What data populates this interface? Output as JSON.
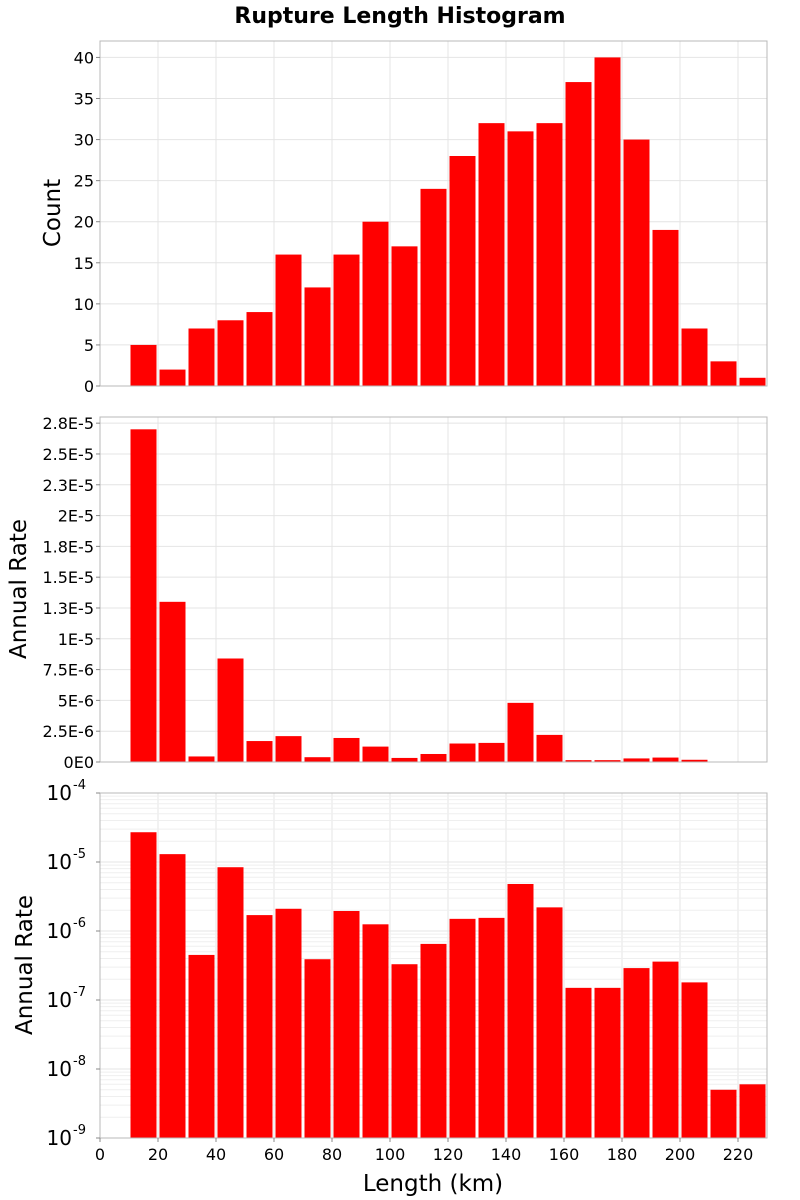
{
  "title": "Rupture Length Histogram",
  "colors": {
    "bar": "#ff0000",
    "bar_edge": "#ffffff"
  },
  "chart_data": [
    {
      "type": "bar",
      "bin_width": 10,
      "x": [
        15,
        25,
        35,
        45,
        55,
        65,
        75,
        85,
        95,
        105,
        115,
        125,
        135,
        145,
        155,
        165,
        175,
        185,
        195,
        205,
        215,
        225
      ],
      "values": [
        5,
        2,
        7,
        8,
        9,
        16,
        12,
        16,
        20,
        17,
        24,
        28,
        32,
        31,
        32,
        37,
        40,
        30,
        19,
        7,
        3,
        1
      ],
      "ylabel": "Count",
      "xlim": [
        0,
        230
      ],
      "ylim": [
        0,
        42
      ],
      "yticks": [
        0,
        5,
        10,
        15,
        20,
        25,
        30,
        35,
        40
      ],
      "ytick_labels": [
        "0",
        "5",
        "10",
        "15",
        "20",
        "25",
        "30",
        "35",
        "40"
      ],
      "grid": true
    },
    {
      "type": "bar",
      "bin_width": 10,
      "x": [
        15,
        25,
        35,
        45,
        55,
        65,
        75,
        85,
        95,
        105,
        115,
        125,
        135,
        145,
        155,
        165,
        175,
        185,
        195,
        205,
        215,
        225
      ],
      "values": [
        2.7e-05,
        1.3e-05,
        4.5e-07,
        8.4e-06,
        1.7e-06,
        2.1e-06,
        3.9e-07,
        1.95e-06,
        1.25e-06,
        3.3e-07,
        6.5e-07,
        1.5e-06,
        1.55e-06,
        4.8e-06,
        2.2e-06,
        1.5e-07,
        1.5e-07,
        2.9e-07,
        3.6e-07,
        1.8e-07,
        5e-09,
        6e-09
      ],
      "ylabel": "Annual Rate",
      "xlim": [
        0,
        230
      ],
      "ylim": [
        0,
        2.8e-05
      ],
      "yticks": [
        0,
        2.5e-06,
        5e-06,
        7.5e-06,
        1e-05,
        1.25e-05,
        1.5e-05,
        1.75e-05,
        2e-05,
        2.25e-05,
        2.5e-05,
        2.75e-05
      ],
      "ytick_labels": [
        "0E0",
        "2.5E-6",
        "5E-6",
        "7.5E-6",
        "1E-5",
        "1.3E-5",
        "1.5E-5",
        "1.8E-5",
        "2E-5",
        "2.3E-5",
        "2.5E-5",
        "2.8E-5"
      ],
      "grid": true
    },
    {
      "type": "bar",
      "scale": "log",
      "bin_width": 10,
      "x": [
        15,
        25,
        35,
        45,
        55,
        65,
        75,
        85,
        95,
        105,
        115,
        125,
        135,
        145,
        155,
        165,
        175,
        185,
        195,
        205,
        215,
        225
      ],
      "values": [
        2.7e-05,
        1.3e-05,
        4.5e-07,
        8.4e-06,
        1.7e-06,
        2.1e-06,
        3.9e-07,
        1.95e-06,
        1.25e-06,
        3.3e-07,
        6.5e-07,
        1.5e-06,
        1.55e-06,
        4.8e-06,
        2.2e-06,
        1.5e-07,
        1.5e-07,
        2.9e-07,
        3.6e-07,
        1.8e-07,
        5e-09,
        6e-09
      ],
      "ylabel": "Annual Rate",
      "xlabel": "Length (km)",
      "xlim": [
        0,
        230
      ],
      "ylim": [
        1e-09,
        0.0001
      ],
      "yticks": [
        1e-09,
        1e-08,
        1e-07,
        1e-06,
        1e-05,
        0.0001
      ],
      "ytick_base": "10",
      "ytick_exponents": [
        "-9",
        "-8",
        "-7",
        "-6",
        "-5",
        "-4"
      ],
      "xticks": [
        0,
        20,
        40,
        60,
        80,
        100,
        120,
        140,
        160,
        180,
        200,
        220
      ],
      "xtick_labels": [
        "0",
        "20",
        "40",
        "60",
        "80",
        "100",
        "120",
        "140",
        "160",
        "180",
        "200",
        "220"
      ],
      "grid": true
    }
  ]
}
